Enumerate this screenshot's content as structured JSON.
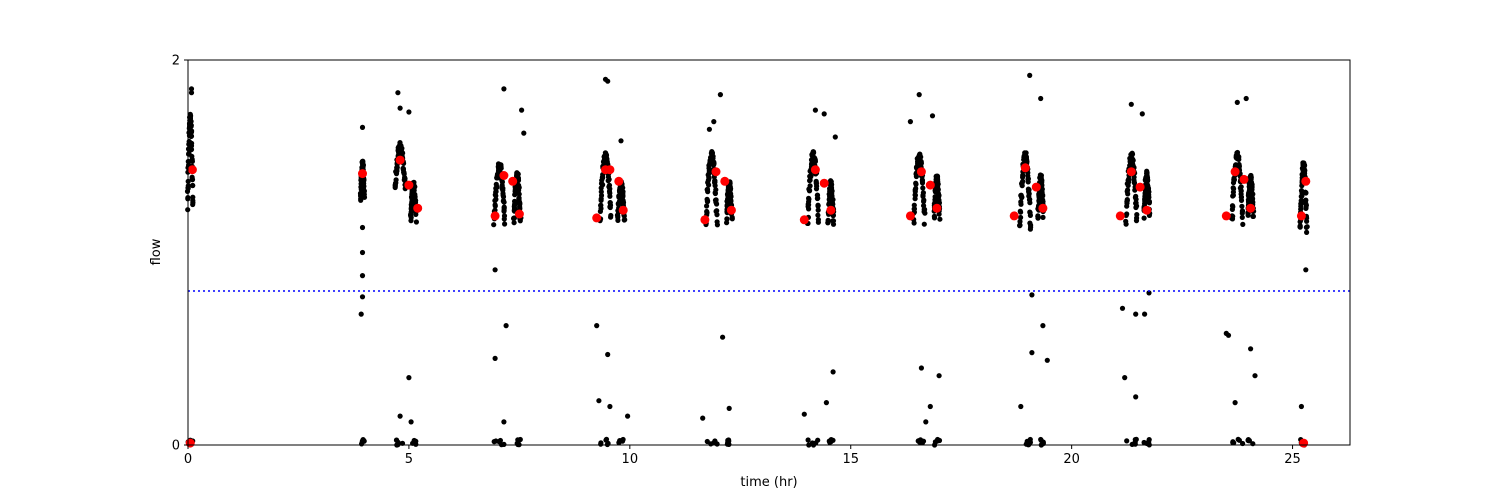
{
  "chart_data": {
    "type": "scatter",
    "xlabel": "time (hr)",
    "ylabel": "flow",
    "xlim": [
      0,
      26.3
    ],
    "ylim": [
      0,
      2
    ],
    "xticks": [
      0,
      5,
      10,
      15,
      20,
      25
    ],
    "yticks": [
      0,
      2
    ],
    "threshold": {
      "y": 0.8,
      "color": "#0000ff",
      "style": "dotted"
    },
    "point_colors": {
      "raw": "#000000",
      "mean": "#ff0000"
    },
    "bursts": [
      {
        "t": 0.05,
        "w": 0.12,
        "lo": 1.15,
        "hi": 1.7
      },
      {
        "t": 3.95,
        "w": 0.08,
        "lo": 1.25,
        "hi": 1.45
      },
      {
        "t": 4.8,
        "w": 0.22,
        "lo": 1.3,
        "hi": 1.55
      },
      {
        "t": 5.1,
        "w": 0.12,
        "lo": 1.15,
        "hi": 1.35
      },
      {
        "t": 7.05,
        "w": 0.25,
        "lo": 1.1,
        "hi": 1.45
      },
      {
        "t": 7.45,
        "w": 0.15,
        "lo": 1.12,
        "hi": 1.4
      },
      {
        "t": 9.45,
        "w": 0.25,
        "lo": 1.12,
        "hi": 1.5
      },
      {
        "t": 9.8,
        "w": 0.15,
        "lo": 1.15,
        "hi": 1.35
      },
      {
        "t": 11.85,
        "w": 0.25,
        "lo": 1.1,
        "hi": 1.5
      },
      {
        "t": 12.25,
        "w": 0.12,
        "lo": 1.15,
        "hi": 1.35
      },
      {
        "t": 14.15,
        "w": 0.25,
        "lo": 1.1,
        "hi": 1.5
      },
      {
        "t": 14.55,
        "w": 0.12,
        "lo": 1.12,
        "hi": 1.35
      },
      {
        "t": 16.55,
        "w": 0.25,
        "lo": 1.1,
        "hi": 1.5
      },
      {
        "t": 16.95,
        "w": 0.12,
        "lo": 1.15,
        "hi": 1.38
      },
      {
        "t": 18.95,
        "w": 0.25,
        "lo": 1.05,
        "hi": 1.5
      },
      {
        "t": 19.3,
        "w": 0.12,
        "lo": 1.15,
        "hi": 1.38
      },
      {
        "t": 21.35,
        "w": 0.25,
        "lo": 1.1,
        "hi": 1.5
      },
      {
        "t": 21.7,
        "w": 0.12,
        "lo": 1.15,
        "hi": 1.4
      },
      {
        "t": 23.75,
        "w": 0.25,
        "lo": 1.1,
        "hi": 1.5
      },
      {
        "t": 24.05,
        "w": 0.12,
        "lo": 1.15,
        "hi": 1.38
      },
      {
        "t": 25.25,
        "w": 0.15,
        "lo": 1.05,
        "hi": 1.45
      }
    ],
    "outliers": [
      [
        0.08,
        1.85
      ],
      [
        0.08,
        1.83
      ],
      [
        3.95,
        1.65
      ],
      [
        3.95,
        1.13
      ],
      [
        3.95,
        1.0
      ],
      [
        3.95,
        0.88
      ],
      [
        3.95,
        0.77
      ],
      [
        3.92,
        0.68
      ],
      [
        4.75,
        1.83
      ],
      [
        4.8,
        1.75
      ],
      [
        5.0,
        1.73
      ],
      [
        4.8,
        0.15
      ],
      [
        5.0,
        0.35
      ],
      [
        5.05,
        0.12
      ],
      [
        6.95,
        0.91
      ],
      [
        6.95,
        0.45
      ],
      [
        7.15,
        1.85
      ],
      [
        7.2,
        0.62
      ],
      [
        7.15,
        0.12
      ],
      [
        7.55,
        1.74
      ],
      [
        7.6,
        1.62
      ],
      [
        9.45,
        1.9
      ],
      [
        9.5,
        1.89
      ],
      [
        9.25,
        0.62
      ],
      [
        9.5,
        0.47
      ],
      [
        9.3,
        0.23
      ],
      [
        9.55,
        0.2
      ],
      [
        9.8,
        1.58
      ],
      [
        9.95,
        0.15
      ],
      [
        11.65,
        0.14
      ],
      [
        11.8,
        1.64
      ],
      [
        11.9,
        1.68
      ],
      [
        12.05,
        1.82
      ],
      [
        12.1,
        0.56
      ],
      [
        12.25,
        0.19
      ],
      [
        13.95,
        0.16
      ],
      [
        14.2,
        1.74
      ],
      [
        14.4,
        1.72
      ],
      [
        14.45,
        0.22
      ],
      [
        14.6,
        0.38
      ],
      [
        14.65,
        1.6
      ],
      [
        16.35,
        1.68
      ],
      [
        16.55,
        1.82
      ],
      [
        16.6,
        0.4
      ],
      [
        16.7,
        0.12
      ],
      [
        16.8,
        0.2
      ],
      [
        16.85,
        1.71
      ],
      [
        17.0,
        0.36
      ],
      [
        18.85,
        0.2
      ],
      [
        19.05,
        1.92
      ],
      [
        19.1,
        0.78
      ],
      [
        19.1,
        0.48
      ],
      [
        19.3,
        1.8
      ],
      [
        19.35,
        0.62
      ],
      [
        19.45,
        0.44
      ],
      [
        21.15,
        0.71
      ],
      [
        21.2,
        0.35
      ],
      [
        21.35,
        1.77
      ],
      [
        21.45,
        0.68
      ],
      [
        21.45,
        0.25
      ],
      [
        21.6,
        1.72
      ],
      [
        21.65,
        0.68
      ],
      [
        21.75,
        0.79
      ],
      [
        23.5,
        0.58
      ],
      [
        23.55,
        0.57
      ],
      [
        23.7,
        0.22
      ],
      [
        23.75,
        1.78
      ],
      [
        23.95,
        1.8
      ],
      [
        24.05,
        0.5
      ],
      [
        24.15,
        0.36
      ],
      [
        25.2,
        0.2
      ],
      [
        25.3,
        0.91
      ]
    ],
    "means": [
      [
        0.1,
        1.43
      ],
      [
        3.95,
        1.41
      ],
      [
        4.8,
        1.48
      ],
      [
        5.0,
        1.35
      ],
      [
        5.2,
        1.23
      ],
      [
        6.95,
        1.19
      ],
      [
        7.15,
        1.4
      ],
      [
        7.35,
        1.37
      ],
      [
        7.5,
        1.2
      ],
      [
        9.25,
        1.18
      ],
      [
        9.45,
        1.43
      ],
      [
        9.55,
        1.43
      ],
      [
        9.75,
        1.37
      ],
      [
        9.85,
        1.22
      ],
      [
        11.7,
        1.17
      ],
      [
        11.95,
        1.42
      ],
      [
        12.15,
        1.37
      ],
      [
        12.3,
        1.22
      ],
      [
        13.95,
        1.17
      ],
      [
        14.2,
        1.43
      ],
      [
        14.4,
        1.36
      ],
      [
        14.55,
        1.22
      ],
      [
        16.35,
        1.19
      ],
      [
        16.6,
        1.42
      ],
      [
        16.8,
        1.35
      ],
      [
        16.95,
        1.23
      ],
      [
        18.7,
        1.19
      ],
      [
        18.95,
        1.44
      ],
      [
        19.2,
        1.34
      ],
      [
        19.35,
        1.23
      ],
      [
        21.1,
        1.19
      ],
      [
        21.35,
        1.42
      ],
      [
        21.55,
        1.34
      ],
      [
        21.7,
        1.22
      ],
      [
        23.5,
        1.19
      ],
      [
        23.7,
        1.42
      ],
      [
        23.9,
        1.38
      ],
      [
        24.05,
        1.23
      ],
      [
        25.2,
        1.19
      ],
      [
        25.3,
        1.37
      ],
      [
        0.05,
        0.01
      ],
      [
        25.25,
        0.01
      ]
    ]
  }
}
